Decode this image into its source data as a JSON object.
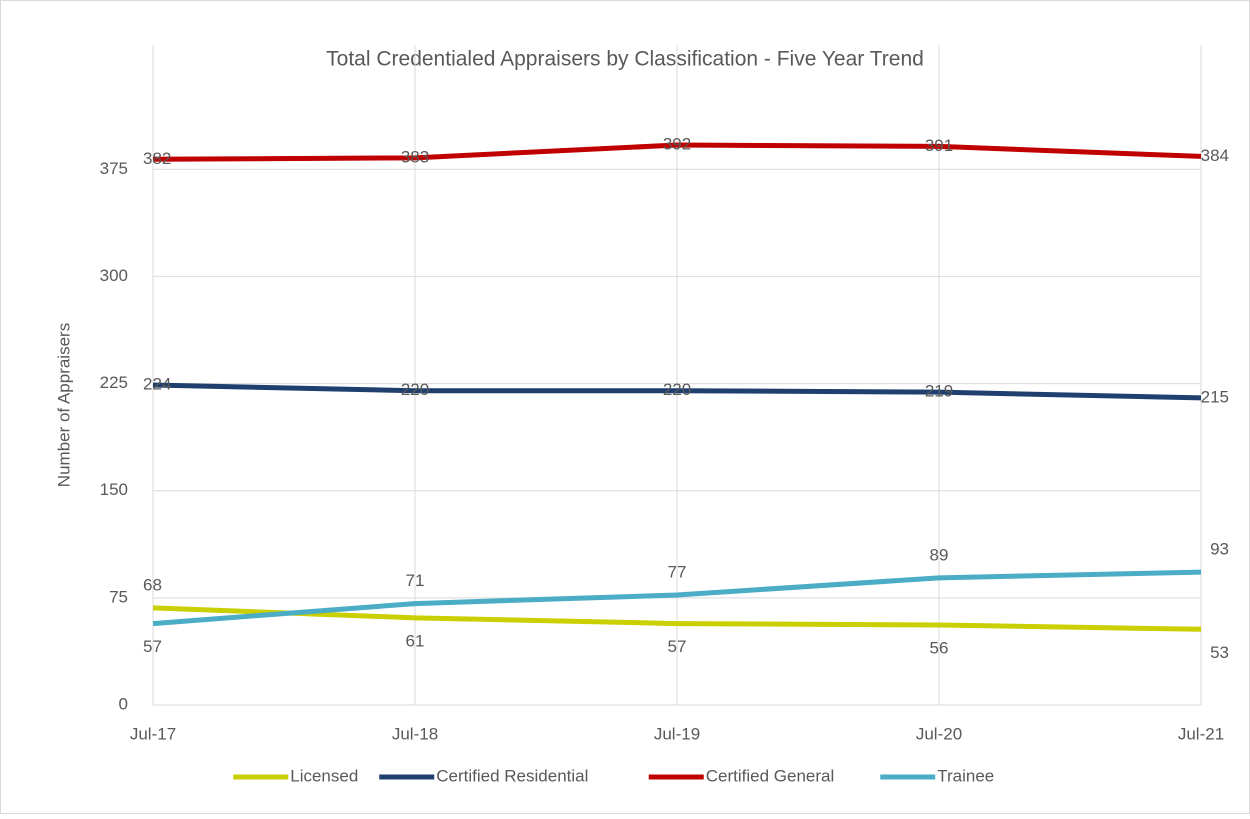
{
  "chart_data": {
    "type": "line",
    "title": "Total Credentialed Appraisers by Classification - Five Year Trend",
    "y_label": "Number of Appraisers",
    "categories": [
      "Jul-17",
      "Jul-18",
      "Jul-19",
      "Jul-20",
      "Jul-21"
    ],
    "series": [
      {
        "name": "Licensed",
        "color": "#c9cf00",
        "values": [
          68,
          61,
          57,
          56,
          53
        ]
      },
      {
        "name": "Certified Residential",
        "color": "#1f3f6e",
        "values": [
          224,
          220,
          220,
          219,
          215
        ]
      },
      {
        "name": "Certified General",
        "color": "#c00000",
        "values": [
          382,
          383,
          392,
          391,
          384
        ]
      },
      {
        "name": "Trainee",
        "color": "#4bacc6",
        "values": [
          57,
          71,
          77,
          89,
          93
        ]
      }
    ],
    "ylim": [
      0,
      462
    ],
    "yticks": [
      0,
      75,
      150,
      225,
      300,
      375
    ],
    "grid": true,
    "legend": "bottom"
  }
}
